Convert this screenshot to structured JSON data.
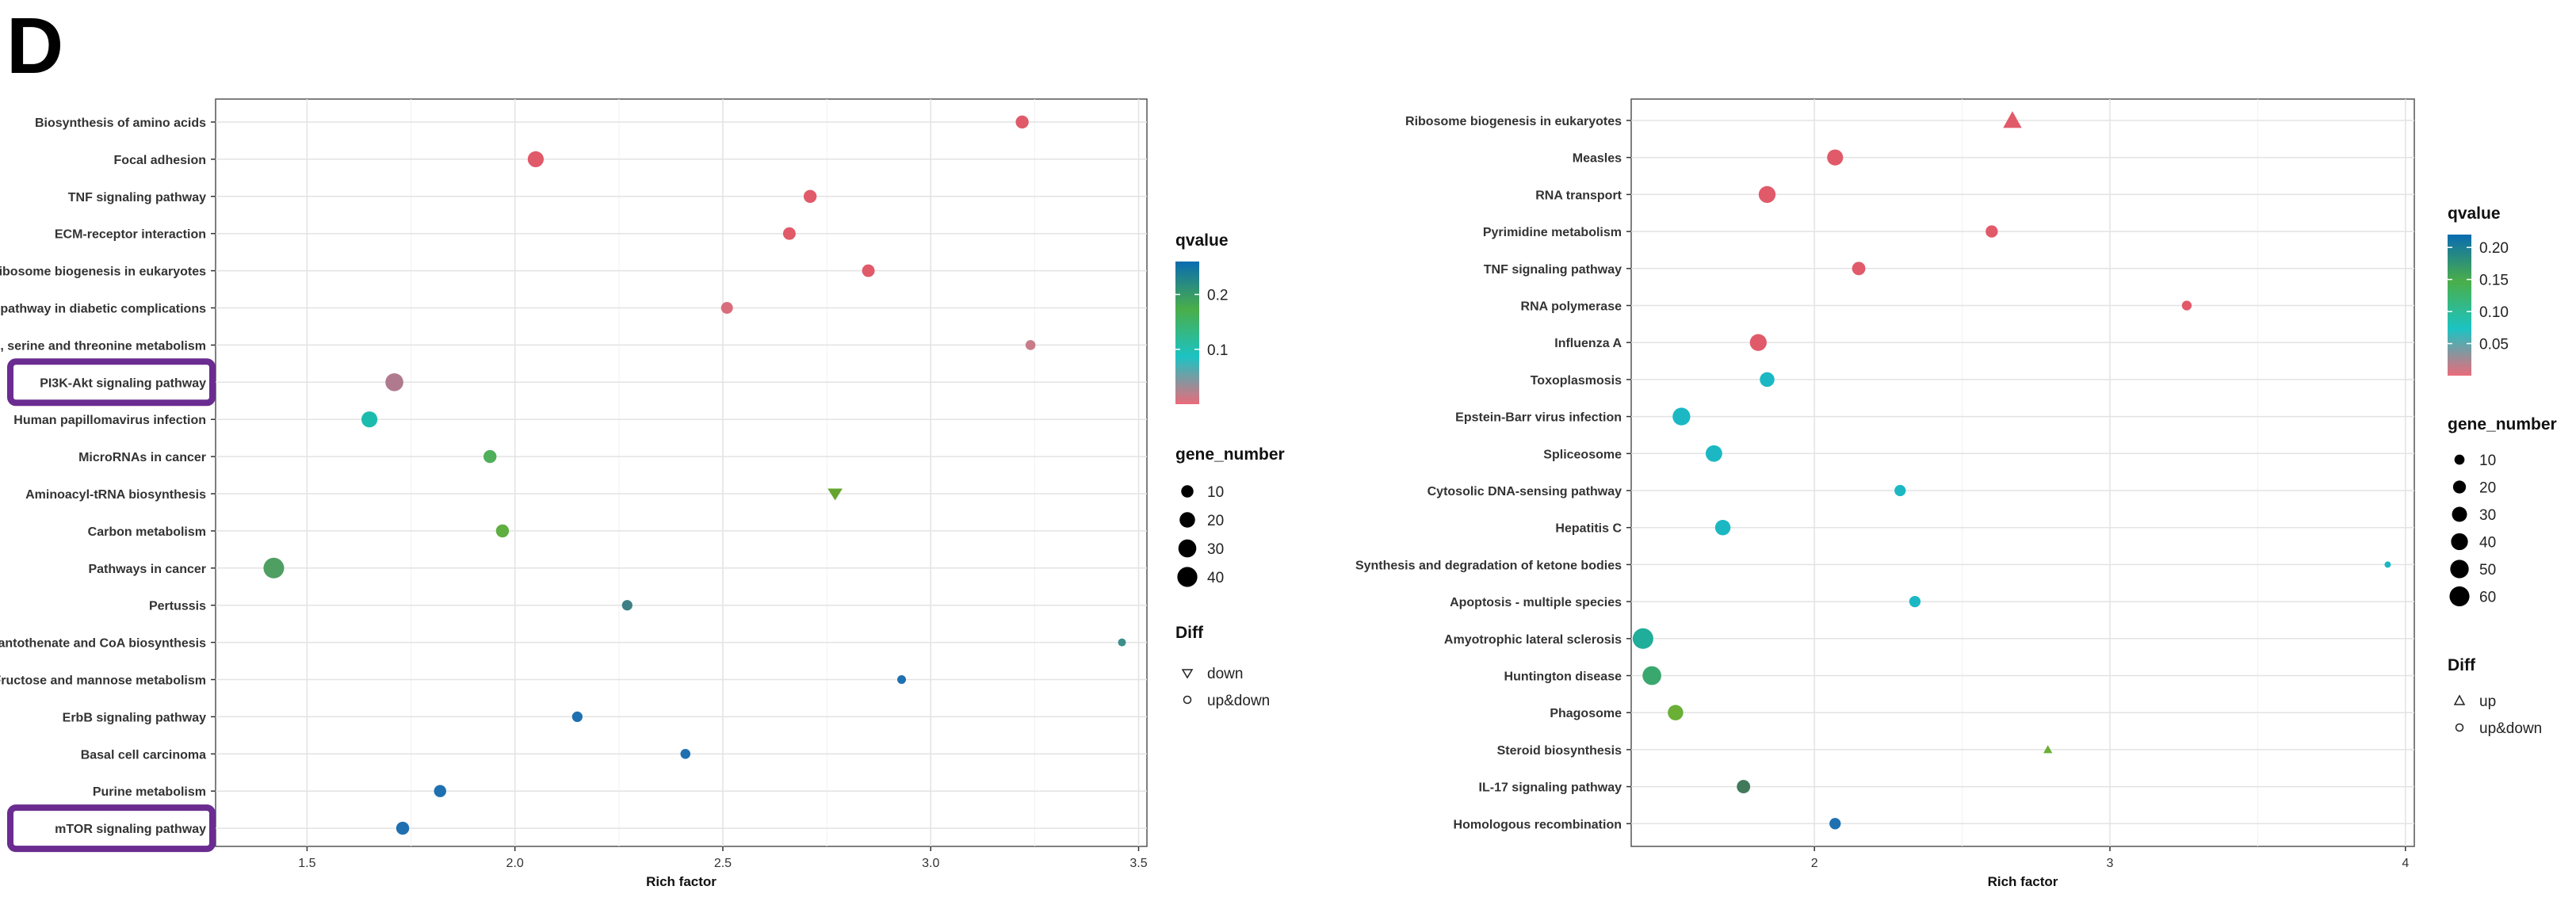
{
  "panel_letter": "D",
  "chart_data": [
    {
      "type": "scatter",
      "name": "left",
      "xlabel": "Rich factor",
      "ylabel": "",
      "xlim": [
        1.28,
        3.52
      ],
      "xticks": [
        1.5,
        2.0,
        2.5,
        3.0,
        3.5
      ],
      "xtick_labels": [
        "1.5",
        "2.0",
        "2.5",
        "3.0",
        "3.5"
      ],
      "categories": [
        "Biosynthesis of amino acids",
        "Focal adhesion",
        "TNF signaling pathway",
        "ECM-receptor interaction",
        "Ribosome biogenesis in eukaryotes",
        "AGE-RAGE signaling pathway in diabetic complications",
        "Glycine, serine and threonine metabolism",
        "PI3K-Akt signaling pathway",
        "Human papillomavirus infection",
        "MicroRNAs in cancer",
        "Aminoacyl-tRNA biosynthesis",
        "Carbon metabolism",
        "Pathways in cancer",
        "Pertussis",
        "Pantothenate and CoA biosynthesis",
        "Fructose and mannose metabolism",
        "ErbB signaling pathway",
        "Basal cell carcinoma",
        "Purine metabolism",
        "mTOR signaling pathway"
      ],
      "points": [
        {
          "x": 3.22,
          "gene_number": 12,
          "qvalue": 0.0,
          "color": "#e05a6a",
          "shape": "circle"
        },
        {
          "x": 2.05,
          "gene_number": 22,
          "qvalue": 0.0,
          "color": "#e05a6a",
          "shape": "circle"
        },
        {
          "x": 2.71,
          "gene_number": 12,
          "qvalue": 0.0,
          "color": "#e05a6a",
          "shape": "circle"
        },
        {
          "x": 2.66,
          "gene_number": 11,
          "qvalue": 0.0,
          "color": "#e05a6a",
          "shape": "circle"
        },
        {
          "x": 2.85,
          "gene_number": 11,
          "qvalue": 0.0,
          "color": "#e05a6a",
          "shape": "circle"
        },
        {
          "x": 2.51,
          "gene_number": 9,
          "qvalue": 0.02,
          "color": "#d96d7c",
          "shape": "circle"
        },
        {
          "x": 3.24,
          "gene_number": 5,
          "qvalue": 0.04,
          "color": "#c87c88",
          "shape": "circle"
        },
        {
          "x": 1.71,
          "gene_number": 30,
          "qvalue": 0.05,
          "color": "#b07a8e",
          "shape": "circle"
        },
        {
          "x": 1.65,
          "gene_number": 22,
          "qvalue": 0.1,
          "color": "#1bbcad",
          "shape": "circle"
        },
        {
          "x": 1.94,
          "gene_number": 12,
          "qvalue": 0.15,
          "color": "#4faf5a",
          "shape": "circle"
        },
        {
          "x": 2.77,
          "gene_number": 8,
          "qvalue": 0.16,
          "color": "#65a42e",
          "shape": "triangle-down"
        },
        {
          "x": 1.97,
          "gene_number": 12,
          "qvalue": 0.16,
          "color": "#5fae40",
          "shape": "circle"
        },
        {
          "x": 1.42,
          "gene_number": 43,
          "qvalue": 0.18,
          "color": "#4f9e62",
          "shape": "circle"
        },
        {
          "x": 2.27,
          "gene_number": 6,
          "qvalue": 0.21,
          "color": "#3d7f84",
          "shape": "circle"
        },
        {
          "x": 3.46,
          "gene_number": 2,
          "qvalue": 0.21,
          "color": "#3e8e8a",
          "shape": "circle"
        },
        {
          "x": 2.93,
          "gene_number": 3,
          "qvalue": 0.25,
          "color": "#1f70b0",
          "shape": "circle"
        },
        {
          "x": 2.15,
          "gene_number": 6,
          "qvalue": 0.25,
          "color": "#1f70b0",
          "shape": "circle"
        },
        {
          "x": 2.41,
          "gene_number": 5,
          "qvalue": 0.25,
          "color": "#1f70b0",
          "shape": "circle"
        },
        {
          "x": 1.82,
          "gene_number": 10,
          "qvalue": 0.25,
          "color": "#1f70b0",
          "shape": "circle"
        },
        {
          "x": 1.73,
          "gene_number": 12,
          "qvalue": 0.25,
          "color": "#1f70b0",
          "shape": "circle"
        }
      ],
      "highlighted": [
        "PI3K-Akt signaling pathway",
        "mTOR signaling pathway"
      ],
      "highlight_color": "#6a2c91",
      "legend_color": {
        "title": "qvalue",
        "ticks": [
          0.1,
          0.2
        ],
        "tick_labels": [
          "0.1",
          "0.2"
        ],
        "range": [
          0.0,
          0.26
        ],
        "stops": [
          "#ea6b7b",
          "#1cc3c3",
          "#4aae4a",
          "#0a6cb0"
        ]
      },
      "legend_size": {
        "title": "gene_number",
        "values": [
          10,
          20,
          30,
          40
        ],
        "labels": [
          "10",
          "20",
          "30",
          "40"
        ]
      },
      "legend_shape": {
        "title": "Diff",
        "items": [
          {
            "shape": "triangle-down",
            "label": "down"
          },
          {
            "shape": "circle",
            "label": "up&down"
          }
        ]
      },
      "legend_placement": "right"
    },
    {
      "type": "scatter",
      "name": "right",
      "xlabel": "Rich factor",
      "ylabel": "",
      "xlim": [
        1.38,
        4.03
      ],
      "xticks": [
        2,
        3,
        4
      ],
      "xtick_labels": [
        "2",
        "3",
        "4"
      ],
      "categories": [
        "Ribosome biogenesis in eukaryotes",
        "Measles",
        "RNA transport",
        "Pyrimidine metabolism",
        "TNF signaling pathway",
        "RNA polymerase",
        "Influenza A",
        "Toxoplasmosis",
        "Epstein-Barr virus infection",
        "Spliceosome",
        "Cytosolic DNA-sensing pathway",
        "Hepatitis C",
        "Synthesis and degradation of ketone bodies",
        "Apoptosis - multiple species",
        "Amyotrophic lateral sclerosis",
        "Huntington disease",
        "Phagosome",
        "Steroid biosynthesis",
        "IL-17 signaling pathway",
        "Homologous recombination"
      ],
      "points": [
        {
          "x": 2.67,
          "gene_number": 40,
          "qvalue": 0.0,
          "color": "#e05a6a",
          "shape": "triangle-up"
        },
        {
          "x": 2.07,
          "gene_number": 35,
          "qvalue": 0.0,
          "color": "#e05a6a",
          "shape": "circle"
        },
        {
          "x": 1.84,
          "gene_number": 40,
          "qvalue": 0.0,
          "color": "#e05a6a",
          "shape": "circle"
        },
        {
          "x": 2.6,
          "gene_number": 17,
          "qvalue": 0.0,
          "color": "#e05a6a",
          "shape": "circle"
        },
        {
          "x": 2.15,
          "gene_number": 22,
          "qvalue": 0.0,
          "color": "#e05a6a",
          "shape": "circle"
        },
        {
          "x": 3.26,
          "gene_number": 9,
          "qvalue": 0.0,
          "color": "#e05a6a",
          "shape": "circle"
        },
        {
          "x": 1.81,
          "gene_number": 40,
          "qvalue": 0.0,
          "color": "#e05a6a",
          "shape": "circle"
        },
        {
          "x": 1.84,
          "gene_number": 28,
          "qvalue": 0.05,
          "color": "#1bb8c4",
          "shape": "circle"
        },
        {
          "x": 1.55,
          "gene_number": 45,
          "qvalue": 0.05,
          "color": "#1bb8c4",
          "shape": "circle"
        },
        {
          "x": 1.66,
          "gene_number": 38,
          "qvalue": 0.05,
          "color": "#1bb8c4",
          "shape": "circle"
        },
        {
          "x": 2.29,
          "gene_number": 14,
          "qvalue": 0.05,
          "color": "#1bb8c4",
          "shape": "circle"
        },
        {
          "x": 1.69,
          "gene_number": 32,
          "qvalue": 0.05,
          "color": "#1bb8c4",
          "shape": "circle"
        },
        {
          "x": 3.94,
          "gene_number": 2,
          "qvalue": 0.08,
          "color": "#1bb8c4",
          "shape": "circle"
        },
        {
          "x": 2.34,
          "gene_number": 14,
          "qvalue": 0.07,
          "color": "#1bb8c4",
          "shape": "circle"
        },
        {
          "x": 1.42,
          "gene_number": 65,
          "qvalue": 0.1,
          "color": "#20ad9a",
          "shape": "circle"
        },
        {
          "x": 1.45,
          "gene_number": 52,
          "qvalue": 0.13,
          "color": "#3aa86e",
          "shape": "circle"
        },
        {
          "x": 1.53,
          "gene_number": 32,
          "qvalue": 0.16,
          "color": "#6aaf36",
          "shape": "circle"
        },
        {
          "x": 2.79,
          "gene_number": 5,
          "qvalue": 0.16,
          "color": "#6aaf36",
          "shape": "triangle-up"
        },
        {
          "x": 1.76,
          "gene_number": 22,
          "qvalue": 0.18,
          "color": "#417a5a",
          "shape": "circle"
        },
        {
          "x": 2.07,
          "gene_number": 14,
          "qvalue": 0.22,
          "color": "#1f70b0",
          "shape": "circle"
        }
      ],
      "legend_color": {
        "title": "qvalue",
        "ticks": [
          0.05,
          0.1,
          0.15,
          0.2
        ],
        "tick_labels": [
          "0.05",
          "0.10",
          "0.15",
          "0.20"
        ],
        "range": [
          0.0,
          0.22
        ],
        "stops": [
          "#ea6b7b",
          "#1cc3c3",
          "#4aae4a",
          "#0a6cb0"
        ]
      },
      "legend_size": {
        "title": "gene_number",
        "values": [
          10,
          20,
          30,
          40,
          50,
          60
        ],
        "labels": [
          "10",
          "20",
          "30",
          "40",
          "50",
          "60"
        ]
      },
      "legend_shape": {
        "title": "Diff",
        "items": [
          {
            "shape": "triangle-up",
            "label": "up"
          },
          {
            "shape": "circle",
            "label": "up&down"
          }
        ]
      },
      "legend_placement": "right"
    }
  ]
}
